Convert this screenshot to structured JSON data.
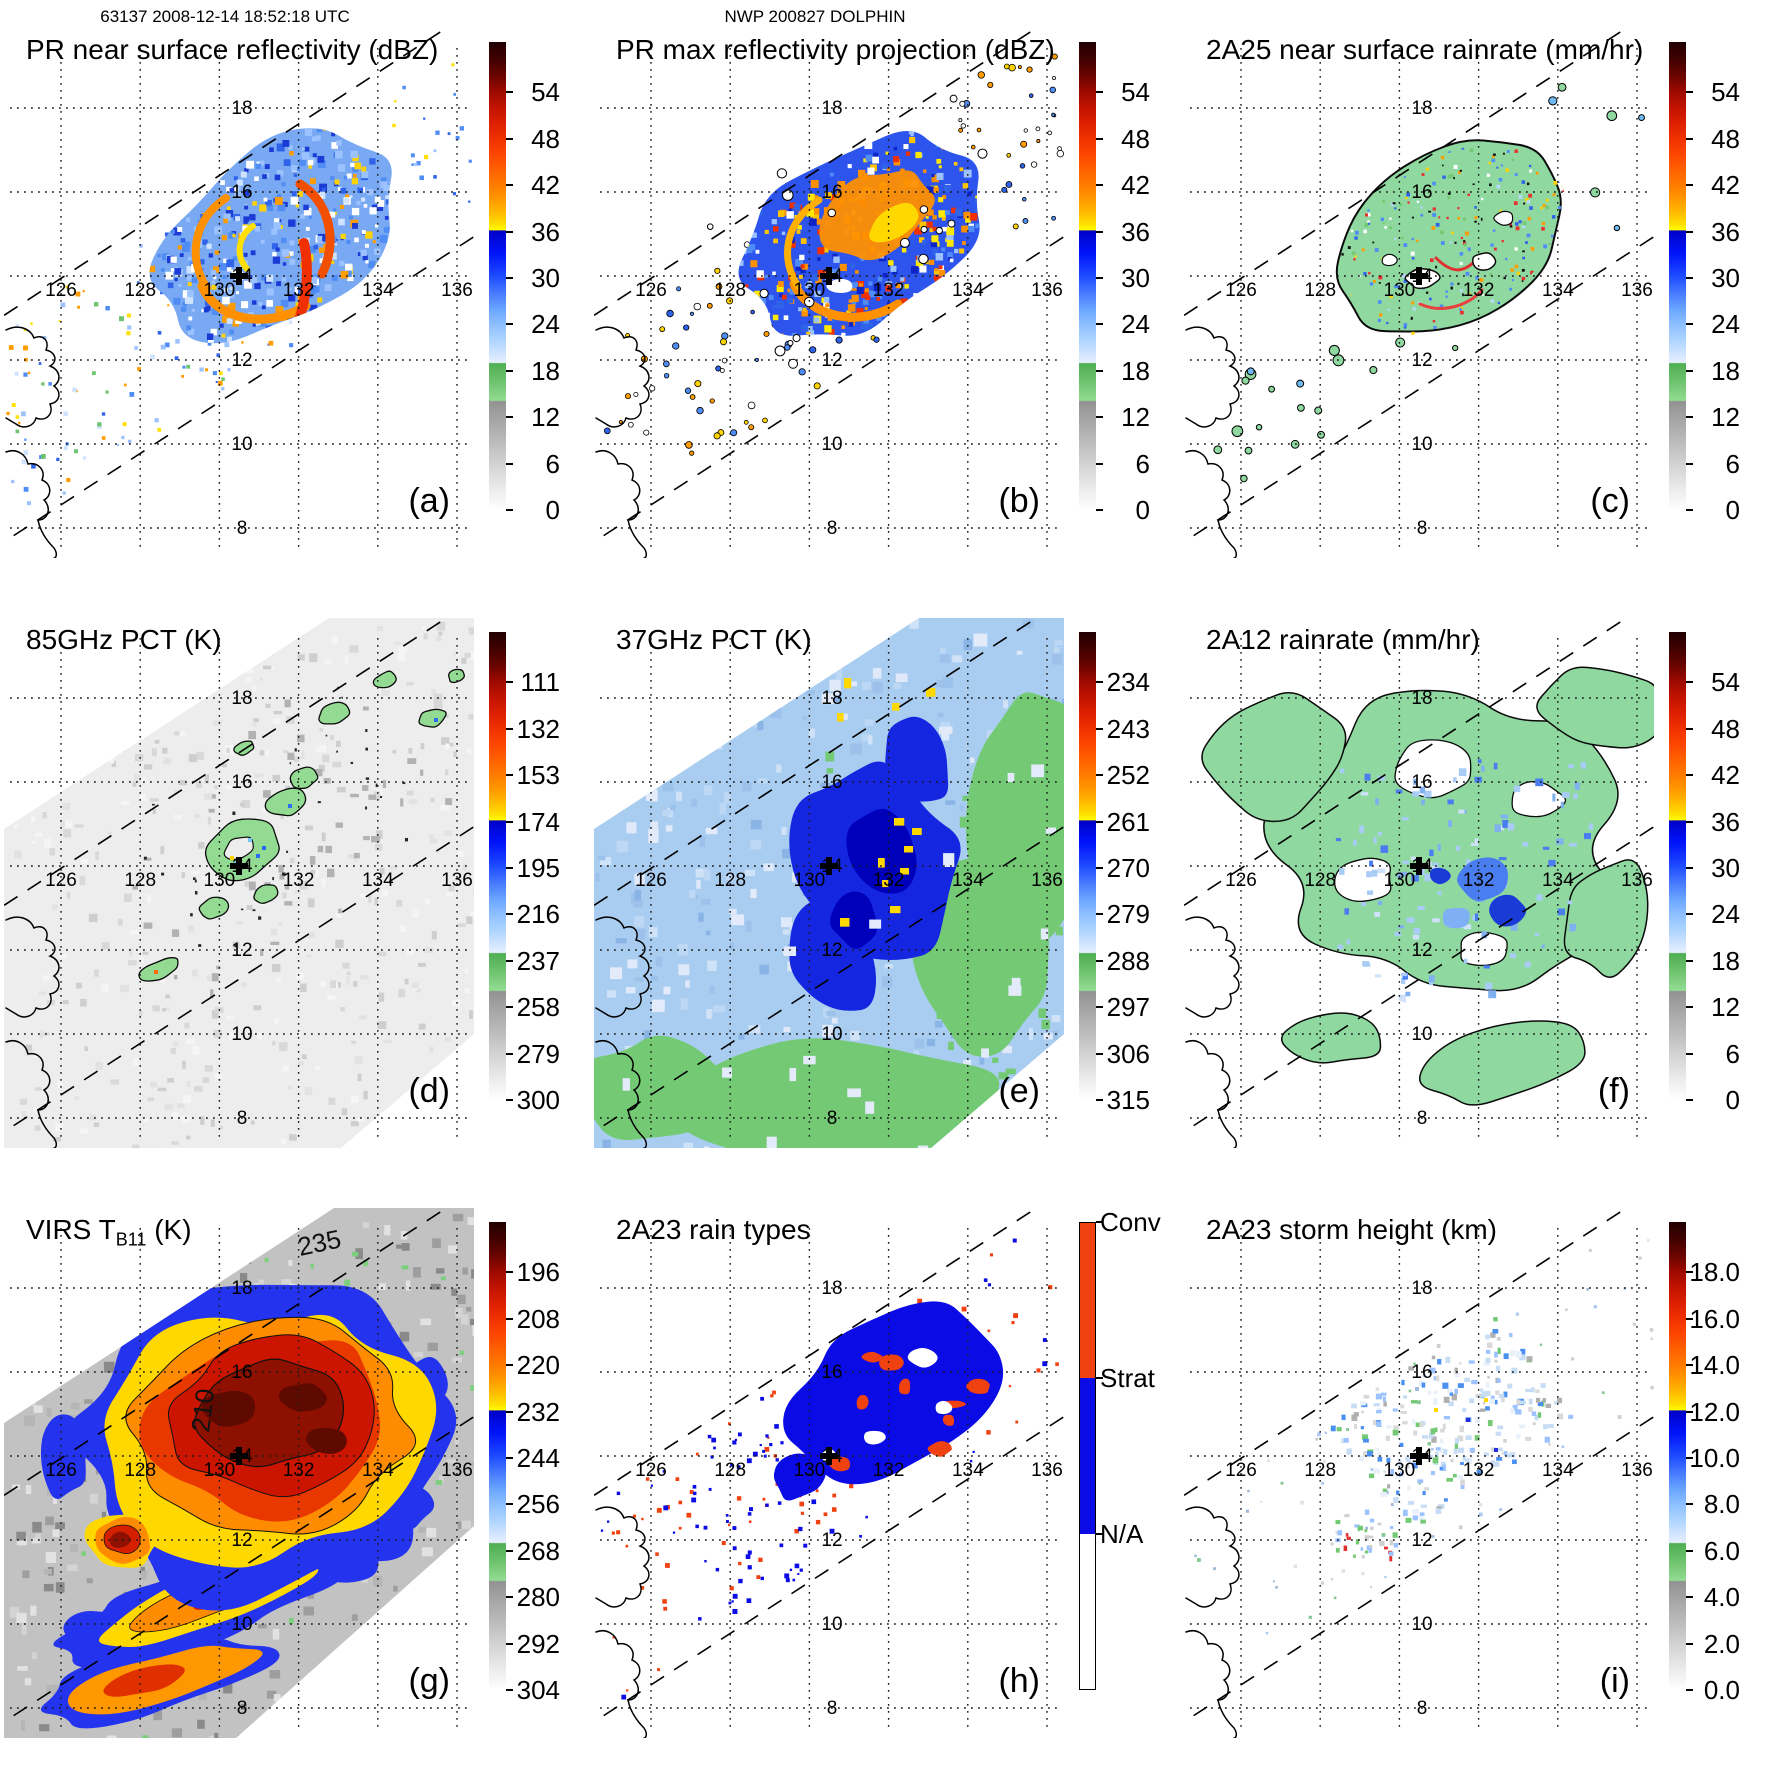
{
  "header": {
    "left": "63137 2008-12-14 18:52:18 UTC",
    "center": "NWP 200827 DOLPHIN"
  },
  "grid": {
    "lon_labels": [
      "126",
      "128",
      "130",
      "132",
      "134",
      "136"
    ],
    "lat_labels": [
      "18",
      "16",
      "14",
      "12",
      "10",
      "8"
    ]
  },
  "colors": {
    "convective": "#f04210",
    "stratiform": "#0b0be6",
    "not_available": "#ffffff",
    "rain_green": "#8fd9a0",
    "scale_stops": [
      {
        "p": 0.0,
        "c": "#1f0000"
      },
      {
        "p": 0.04,
        "c": "#450200"
      },
      {
        "p": 0.075,
        "c": "#6e0400"
      },
      {
        "p": 0.105,
        "c": "#9c0a00"
      },
      {
        "p": 0.14,
        "c": "#c21300"
      },
      {
        "p": 0.175,
        "c": "#dd2000"
      },
      {
        "p": 0.21,
        "c": "#f23300"
      },
      {
        "p": 0.245,
        "c": "#fd4a00"
      },
      {
        "p": 0.275,
        "c": "#ff6300"
      },
      {
        "p": 0.31,
        "c": "#ff7f00"
      },
      {
        "p": 0.34,
        "c": "#ff9d00"
      },
      {
        "p": 0.365,
        "c": "#ffbc00"
      },
      {
        "p": 0.39,
        "c": "#ffe100"
      },
      {
        "p": 0.402,
        "c": "#ffff00"
      },
      {
        "p": 0.403,
        "c": "#0000c8"
      },
      {
        "p": 0.45,
        "c": "#0013fa"
      },
      {
        "p": 0.5,
        "c": "#1e4bff"
      },
      {
        "p": 0.535,
        "c": "#4678ff"
      },
      {
        "p": 0.57,
        "c": "#69a4ff"
      },
      {
        "p": 0.6,
        "c": "#8abdff"
      },
      {
        "p": 0.635,
        "c": "#abd3ff"
      },
      {
        "p": 0.665,
        "c": "#cfe4ff"
      },
      {
        "p": 0.685,
        "c": "#e7efff"
      },
      {
        "p": 0.687,
        "c": "#4fae52"
      },
      {
        "p": 0.73,
        "c": "#72c572"
      },
      {
        "p": 0.766,
        "c": "#93dc93"
      },
      {
        "p": 0.768,
        "c": "#929292"
      },
      {
        "p": 0.8,
        "c": "#a2a2a2"
      },
      {
        "p": 0.85,
        "c": "#b9b9b9"
      },
      {
        "p": 0.9,
        "c": "#d2d2d2"
      },
      {
        "p": 0.95,
        "c": "#e9e9e9"
      },
      {
        "p": 1.0,
        "c": "#ffffff"
      }
    ]
  },
  "annotations": {
    "virs_contour_labels": [
      "210",
      "235"
    ]
  },
  "panels": [
    {
      "letter": "(a)",
      "title": "PR near surface reflectivity (dBZ)",
      "map": "pr_refl",
      "colorbar": {
        "type": "scale",
        "ticks": [
          "54",
          "48",
          "42",
          "36",
          "30",
          "24",
          "18",
          "12",
          "6",
          "0"
        ]
      }
    },
    {
      "letter": "(b)",
      "title": "PR max reflectivity projection (dBZ)",
      "map": "pr_max",
      "colorbar": {
        "type": "scale",
        "ticks": [
          "54",
          "48",
          "42",
          "36",
          "30",
          "24",
          "18",
          "12",
          "6",
          "0"
        ]
      }
    },
    {
      "letter": "(c)",
      "title": "2A25 near surface rainrate (mm/hr)",
      "map": "rr_2a25",
      "colorbar": {
        "type": "scale",
        "ticks": [
          "54",
          "48",
          "42",
          "36",
          "30",
          "24",
          "18",
          "12",
          "6",
          "0"
        ]
      }
    },
    {
      "letter": "(d)",
      "title": "85GHz PCT (K)",
      "map": "pct85",
      "colorbar": {
        "type": "scale",
        "ticks": [
          "111",
          "132",
          "153",
          "174",
          "195",
          "216",
          "237",
          "258",
          "279",
          "300"
        ]
      }
    },
    {
      "letter": "(e)",
      "title": "37GHz PCT (K)",
      "map": "pct37",
      "colorbar": {
        "type": "scale",
        "ticks": [
          "234",
          "243",
          "252",
          "261",
          "270",
          "279",
          "288",
          "297",
          "306",
          "315"
        ]
      }
    },
    {
      "letter": "(f)",
      "title": "2A12 rainrate (mm/hr)",
      "map": "rr_2a12",
      "colorbar": {
        "type": "scale",
        "ticks": [
          "54",
          "48",
          "42",
          "36",
          "30",
          "24",
          "18",
          "12",
          "6",
          "0"
        ]
      }
    },
    {
      "letter": "(g)",
      "title": "VIRS TB11 (K)",
      "map": "virs",
      "title_parts": {
        "pre": "VIRS T",
        "sub": "B11",
        "post": " (K)"
      },
      "colorbar": {
        "type": "scale",
        "ticks": [
          "196",
          "208",
          "220",
          "232",
          "244",
          "256",
          "268",
          "280",
          "292",
          "304"
        ]
      }
    },
    {
      "letter": "(h)",
      "title": "2A23 rain types",
      "map": "rain_types",
      "colorbar": {
        "type": "categories",
        "categories": [
          "Conv",
          "Strat",
          "N/A"
        ]
      }
    },
    {
      "letter": "(i)",
      "title": "2A23 storm height (km)",
      "map": "storm_height",
      "colorbar": {
        "type": "scale",
        "ticks": [
          "18.0",
          "16.0",
          "14.0",
          "12.0",
          "10.0",
          "8.0",
          "6.0",
          "4.0",
          "2.0",
          "0.0"
        ]
      }
    }
  ]
}
